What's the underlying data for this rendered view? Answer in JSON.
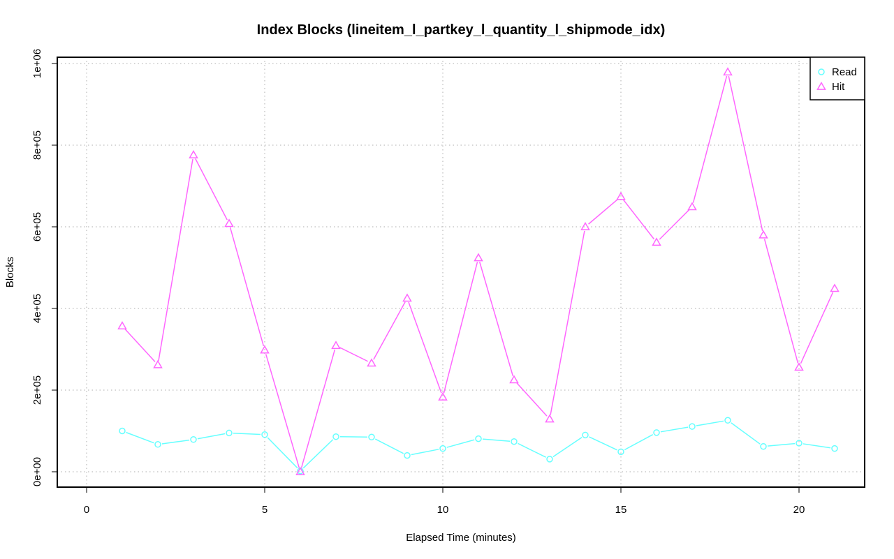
{
  "chart_data": {
    "type": "line",
    "title": "Index Blocks (lineitem_l_partkey_l_quantity_l_shipmode_idx)",
    "xlabel": "Elapsed Time (minutes)",
    "ylabel": "Blocks",
    "xlim": [
      0,
      21
    ],
    "ylim": [
      0,
      1000000
    ],
    "x_ticks": [
      0,
      5,
      10,
      15,
      20
    ],
    "x_tick_labels": [
      "0",
      "5",
      "10",
      "15",
      "20"
    ],
    "y_ticks": [
      0,
      200000,
      400000,
      600000,
      800000,
      1000000
    ],
    "y_tick_labels": [
      "0e+00",
      "2e+05",
      "4e+05",
      "6e+05",
      "8e+05",
      "1e+06"
    ],
    "grid": true,
    "legend_position": "top-right",
    "x": [
      1,
      2,
      3,
      4,
      5,
      6,
      7,
      8,
      9,
      10,
      11,
      12,
      13,
      14,
      15,
      16,
      17,
      18,
      19,
      20,
      21
    ],
    "series": [
      {
        "name": "Read",
        "color": "#66ffff",
        "marker": "circle",
        "values": [
          100000,
          67000,
          79000,
          95000,
          91000,
          2000,
          86000,
          85000,
          40000,
          57000,
          81000,
          74000,
          31000,
          90000,
          49000,
          96000,
          111000,
          126000,
          62000,
          70000,
          57000
        ]
      },
      {
        "name": "Hit",
        "color": "#ff66ff",
        "marker": "triangle",
        "values": [
          357000,
          262000,
          776000,
          608000,
          298000,
          0,
          309000,
          266000,
          425000,
          183000,
          524000,
          225000,
          129000,
          600000,
          674000,
          562000,
          649000,
          979000,
          580000,
          256000,
          449000
        ]
      }
    ]
  }
}
